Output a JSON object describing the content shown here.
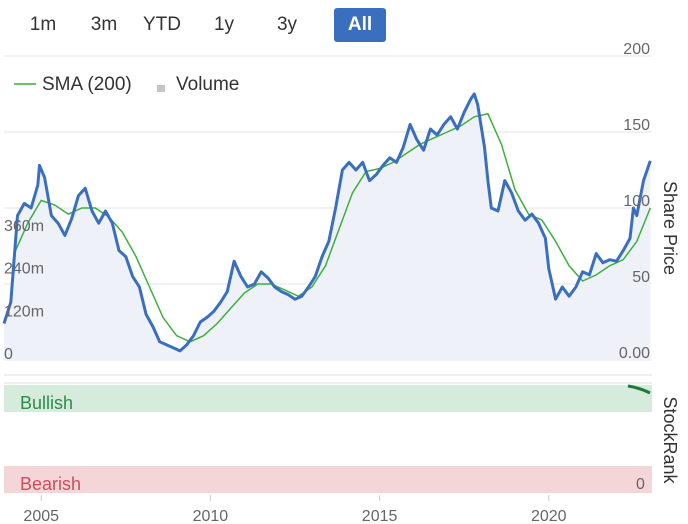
{
  "range_buttons": [
    {
      "label": "1m",
      "active": false
    },
    {
      "label": "3m",
      "active": false
    },
    {
      "label": "YTD",
      "active": false
    },
    {
      "label": "1y",
      "active": false
    },
    {
      "label": "3y",
      "active": false
    },
    {
      "label": "All",
      "active": true
    }
  ],
  "legend": {
    "sma_label": "SMA (200)",
    "volume_label": "Volume"
  },
  "axis_title_price": "Share Price",
  "axis_title_rank": "StockRank",
  "bullish_label": "Bullish",
  "bearish_label": "Bearish",
  "rank_zero_label": "0",
  "colors": {
    "price": "#3a6fbf",
    "sma": "#3fae3f",
    "volume": "#c4c4c4",
    "bullish_bg": "#d5ebdc",
    "bearish_bg": "#f5d6d8",
    "bullish_text": "#2e8b4a",
    "bearish_text": "#cc4e5c",
    "button_active": "#3a6fbf"
  },
  "chart_data": {
    "type": "line",
    "x_ticks": [
      2005,
      2010,
      2015,
      2020
    ],
    "price_axis": {
      "ticks": [
        "200",
        "150",
        "100",
        "50",
        "0.00"
      ],
      "range": [
        0,
        200
      ]
    },
    "volume_axis": {
      "ticks": [
        "360m",
        "240m",
        "120m",
        "0"
      ],
      "range": [
        0,
        480
      ]
    },
    "series": [
      {
        "name": "Price",
        "kind": "line",
        "values": [
          [
            2003.9,
            24
          ],
          [
            2004.1,
            38
          ],
          [
            2004.3,
            95
          ],
          [
            2004.5,
            103
          ],
          [
            2004.7,
            100
          ],
          [
            2004.9,
            115
          ],
          [
            2004.95,
            128
          ],
          [
            2005.1,
            120
          ],
          [
            2005.3,
            95
          ],
          [
            2005.5,
            90
          ],
          [
            2005.7,
            82
          ],
          [
            2005.9,
            93
          ],
          [
            2006.1,
            108
          ],
          [
            2006.3,
            113
          ],
          [
            2006.5,
            98
          ],
          [
            2006.7,
            90
          ],
          [
            2006.9,
            98
          ],
          [
            2007.1,
            90
          ],
          [
            2007.3,
            72
          ],
          [
            2007.5,
            68
          ],
          [
            2007.7,
            55
          ],
          [
            2007.9,
            48
          ],
          [
            2008.1,
            30
          ],
          [
            2008.3,
            22
          ],
          [
            2008.5,
            12
          ],
          [
            2008.7,
            10
          ],
          [
            2008.9,
            8
          ],
          [
            2009.1,
            6
          ],
          [
            2009.3,
            10
          ],
          [
            2009.5,
            16
          ],
          [
            2009.7,
            25
          ],
          [
            2009.9,
            28
          ],
          [
            2010.1,
            32
          ],
          [
            2010.3,
            38
          ],
          [
            2010.5,
            45
          ],
          [
            2010.7,
            65
          ],
          [
            2010.9,
            55
          ],
          [
            2011.1,
            48
          ],
          [
            2011.3,
            50
          ],
          [
            2011.5,
            58
          ],
          [
            2011.7,
            54
          ],
          [
            2011.9,
            48
          ],
          [
            2012.1,
            45
          ],
          [
            2012.3,
            43
          ],
          [
            2012.5,
            40
          ],
          [
            2012.7,
            42
          ],
          [
            2012.9,
            48
          ],
          [
            2013.1,
            55
          ],
          [
            2013.3,
            68
          ],
          [
            2013.5,
            78
          ],
          [
            2013.7,
            100
          ],
          [
            2013.9,
            125
          ],
          [
            2014.1,
            130
          ],
          [
            2014.3,
            125
          ],
          [
            2014.5,
            130
          ],
          [
            2014.7,
            118
          ],
          [
            2014.9,
            122
          ],
          [
            2015.1,
            128
          ],
          [
            2015.3,
            133
          ],
          [
            2015.5,
            130
          ],
          [
            2015.7,
            140
          ],
          [
            2015.9,
            155
          ],
          [
            2016.1,
            145
          ],
          [
            2016.3,
            138
          ],
          [
            2016.5,
            152
          ],
          [
            2016.7,
            148
          ],
          [
            2016.9,
            155
          ],
          [
            2017.1,
            160
          ],
          [
            2017.3,
            152
          ],
          [
            2017.5,
            163
          ],
          [
            2017.7,
            172
          ],
          [
            2017.8,
            175
          ],
          [
            2017.9,
            168
          ],
          [
            2018.1,
            140
          ],
          [
            2018.2,
            118
          ],
          [
            2018.3,
            100
          ],
          [
            2018.5,
            98
          ],
          [
            2018.7,
            118
          ],
          [
            2018.9,
            110
          ],
          [
            2019.1,
            98
          ],
          [
            2019.3,
            92
          ],
          [
            2019.5,
            96
          ],
          [
            2019.7,
            90
          ],
          [
            2019.9,
            80
          ],
          [
            2020.0,
            60
          ],
          [
            2020.2,
            40
          ],
          [
            2020.4,
            48
          ],
          [
            2020.6,
            42
          ],
          [
            2020.8,
            48
          ],
          [
            2021.0,
            58
          ],
          [
            2021.2,
            56
          ],
          [
            2021.4,
            70
          ],
          [
            2021.6,
            64
          ],
          [
            2021.8,
            66
          ],
          [
            2022.0,
            65
          ],
          [
            2022.2,
            72
          ],
          [
            2022.4,
            80
          ],
          [
            2022.5,
            100
          ],
          [
            2022.6,
            95
          ],
          [
            2022.8,
            118
          ],
          [
            2023.0,
            131
          ]
        ]
      },
      {
        "name": "SMA (200)",
        "kind": "line",
        "values": [
          [
            2004.2,
            70
          ],
          [
            2004.6,
            90
          ],
          [
            2005.0,
            105
          ],
          [
            2005.4,
            102
          ],
          [
            2005.8,
            96
          ],
          [
            2006.2,
            100
          ],
          [
            2006.6,
            100
          ],
          [
            2007.0,
            94
          ],
          [
            2007.4,
            84
          ],
          [
            2007.8,
            68
          ],
          [
            2008.2,
            48
          ],
          [
            2008.6,
            28
          ],
          [
            2009.0,
            16
          ],
          [
            2009.4,
            12
          ],
          [
            2009.8,
            16
          ],
          [
            2010.2,
            24
          ],
          [
            2010.6,
            34
          ],
          [
            2011.0,
            44
          ],
          [
            2011.4,
            50
          ],
          [
            2011.8,
            50
          ],
          [
            2012.2,
            46
          ],
          [
            2012.6,
            42
          ],
          [
            2013.0,
            48
          ],
          [
            2013.4,
            62
          ],
          [
            2013.8,
            86
          ],
          [
            2014.2,
            110
          ],
          [
            2014.6,
            124
          ],
          [
            2015.0,
            126
          ],
          [
            2015.4,
            130
          ],
          [
            2015.8,
            136
          ],
          [
            2016.2,
            142
          ],
          [
            2016.6,
            146
          ],
          [
            2017.0,
            150
          ],
          [
            2017.4,
            154
          ],
          [
            2017.8,
            160
          ],
          [
            2018.2,
            162
          ],
          [
            2018.6,
            142
          ],
          [
            2019.0,
            112
          ],
          [
            2019.4,
            96
          ],
          [
            2019.8,
            92
          ],
          [
            2020.2,
            78
          ],
          [
            2020.6,
            62
          ],
          [
            2021.0,
            52
          ],
          [
            2021.4,
            56
          ],
          [
            2021.8,
            62
          ],
          [
            2022.2,
            66
          ],
          [
            2022.6,
            78
          ],
          [
            2023.0,
            100
          ]
        ]
      },
      {
        "name": "Volume",
        "kind": "bar",
        "values": [
          [
            2004.0,
            60
          ],
          [
            2004.2,
            80
          ],
          [
            2004.3,
            130
          ],
          [
            2004.5,
            120
          ],
          [
            2004.6,
            230
          ],
          [
            2004.8,
            90
          ],
          [
            2005.0,
            70
          ],
          [
            2005.2,
            60
          ],
          [
            2005.4,
            80
          ],
          [
            2005.6,
            40
          ],
          [
            2005.8,
            50
          ],
          [
            2006.0,
            60
          ],
          [
            2006.2,
            70
          ],
          [
            2006.4,
            40
          ],
          [
            2006.6,
            160
          ],
          [
            2006.7,
            80
          ],
          [
            2006.9,
            60
          ],
          [
            2007.1,
            50
          ],
          [
            2007.3,
            60
          ],
          [
            2007.5,
            45
          ],
          [
            2007.7,
            40
          ],
          [
            2007.9,
            70
          ],
          [
            2008.1,
            50
          ],
          [
            2008.3,
            30
          ],
          [
            2008.5,
            20
          ],
          [
            2008.7,
            15
          ],
          [
            2009.0,
            10
          ],
          [
            2009.5,
            10
          ],
          [
            2010.0,
            8
          ],
          [
            2011.0,
            6
          ],
          [
            2012.0,
            6
          ],
          [
            2013.0,
            6
          ],
          [
            2014.0,
            8
          ],
          [
            2015.0,
            10
          ],
          [
            2015.7,
            15
          ],
          [
            2016.0,
            20
          ],
          [
            2016.3,
            12
          ],
          [
            2016.6,
            8
          ],
          [
            2017.0,
            8
          ],
          [
            2017.5,
            10
          ],
          [
            2018.0,
            20
          ],
          [
            2018.5,
            12
          ],
          [
            2019.0,
            10
          ],
          [
            2019.5,
            8
          ],
          [
            2020.0,
            14
          ],
          [
            2020.2,
            10
          ],
          [
            2020.5,
            8
          ],
          [
            2021.0,
            10
          ],
          [
            2021.5,
            8
          ],
          [
            2022.0,
            6
          ],
          [
            2022.5,
            6
          ]
        ]
      }
    ]
  }
}
